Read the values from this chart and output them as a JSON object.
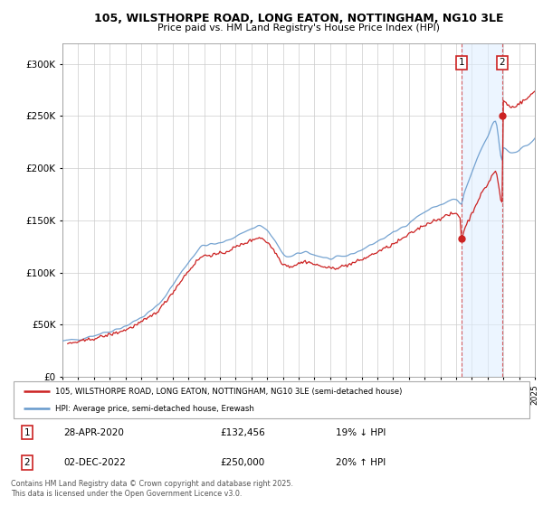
{
  "title_line1": "105, WILSTHORPE ROAD, LONG EATON, NOTTINGHAM, NG10 3LE",
  "title_line2": "Price paid vs. HM Land Registry's House Price Index (HPI)",
  "background_color": "#ffffff",
  "plot_background": "#ffffff",
  "grid_color": "#cccccc",
  "hpi_color": "#6699cc",
  "price_color": "#cc2222",
  "shaded_color": "#ddeeff",
  "legend_price_label": "105, WILSTHORPE ROAD, LONG EATON, NOTTINGHAM, NG10 3LE (semi-detached house)",
  "legend_hpi_label": "HPI: Average price, semi-detached house, Erewash",
  "note1": "28-APR-2020",
  "note1_price": "£132,456",
  "note1_pct": "19% ↓ HPI",
  "note2": "02-DEC-2022",
  "note2_price": "£250,000",
  "note2_pct": "20% ↑ HPI",
  "copyright": "Contains HM Land Registry data © Crown copyright and database right 2025.\nThis data is licensed under the Open Government Licence v3.0.",
  "ylim_max": 320000,
  "ylim_min": 0,
  "sale1_year": 2020.33,
  "sale1_price": 132456,
  "sale2_year": 2022.92,
  "sale2_price": 250000,
  "first_sale_year": 1995.33,
  "first_sale_price": 32000,
  "shaded_start": 2020.33,
  "shaded_end": 2022.92,
  "xlim_min": 1995,
  "xlim_max": 2025,
  "xticks": [
    1995,
    1996,
    1997,
    1998,
    1999,
    2000,
    2001,
    2002,
    2003,
    2004,
    2005,
    2006,
    2007,
    2008,
    2009,
    2010,
    2011,
    2012,
    2013,
    2014,
    2015,
    2016,
    2017,
    2018,
    2019,
    2020,
    2021,
    2022,
    2023,
    2024,
    2025
  ],
  "ann1_label": "1",
  "ann2_label": "2"
}
